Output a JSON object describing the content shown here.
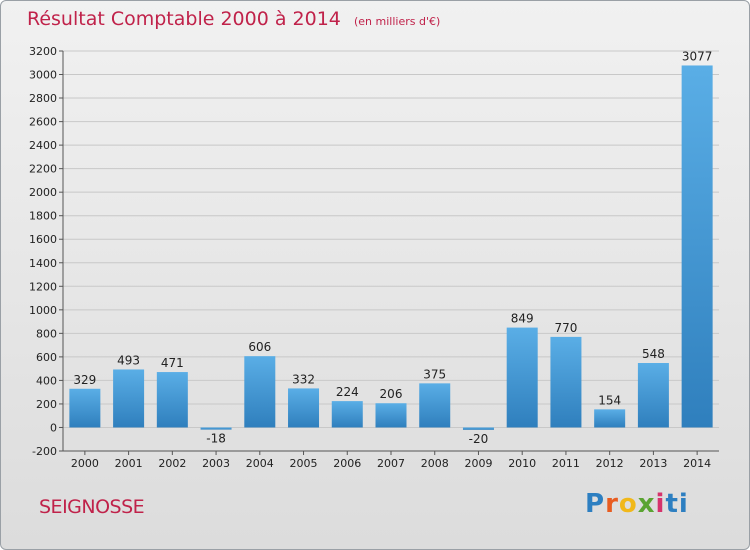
{
  "page": {
    "town": "SEIGNOSSE",
    "logo": "Proxiti",
    "colors": {
      "title": "#c0224a",
      "bar_light": "#5aaee6",
      "bar_dark": "#2f7fbd",
      "grid": "#c8c8c8",
      "axis_text": "#222222"
    }
  },
  "chart_data": {
    "type": "bar",
    "title": "Résultat Comptable 2000 à 2014",
    "unit_label": "(en milliers d'€)",
    "xlabel": "",
    "ylabel": "",
    "categories": [
      "2000",
      "2001",
      "2002",
      "2003",
      "2004",
      "2005",
      "2006",
      "2007",
      "2008",
      "2009",
      "2010",
      "2011",
      "2012",
      "2013",
      "2014"
    ],
    "values": [
      329,
      493,
      471,
      -18,
      606,
      332,
      224,
      206,
      375,
      -20,
      849,
      770,
      154,
      548,
      3077
    ],
    "ylim": [
      -200,
      3200
    ],
    "yticks": [
      -200,
      0,
      200,
      400,
      600,
      800,
      1000,
      1200,
      1400,
      1600,
      1800,
      2000,
      2200,
      2400,
      2600,
      2800,
      3000,
      3200
    ],
    "grid": true
  }
}
